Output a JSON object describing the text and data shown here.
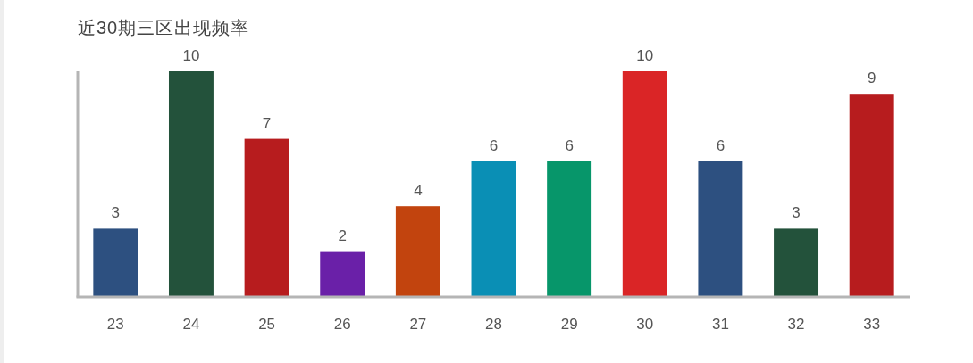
{
  "chart_data": {
    "type": "bar",
    "title": "近30期三区出现频率",
    "categories": [
      "23",
      "24",
      "25",
      "26",
      "27",
      "28",
      "29",
      "30",
      "31",
      "32",
      "33"
    ],
    "values": [
      3,
      10,
      7,
      2,
      4,
      6,
      6,
      10,
      6,
      3,
      9
    ],
    "colors": [
      "#2d5080",
      "#23523b",
      "#b71c1e",
      "#6a20a8",
      "#c2440e",
      "#0a8fb5",
      "#07966a",
      "#da2526",
      "#2d5080",
      "#23523b",
      "#b71c1e"
    ],
    "ylim": [
      0,
      10
    ],
    "data_labels": true
  }
}
